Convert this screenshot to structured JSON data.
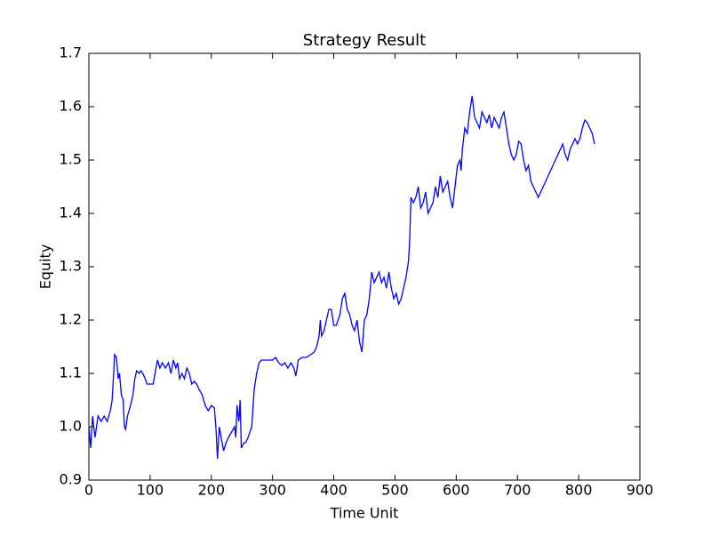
{
  "chart_data": {
    "type": "line",
    "title": "Strategy Result",
    "x_label": "Time Unit",
    "y_label": "Equity",
    "xlim": [
      0,
      900
    ],
    "ylim": [
      0.9,
      1.7
    ],
    "xticks": [
      0,
      100,
      200,
      300,
      400,
      500,
      600,
      700,
      800,
      900
    ],
    "yticks": [
      0.9,
      {
        "value": 1,
        "label": "1.0"
      },
      1.1,
      1.2,
      1.3,
      1.4,
      1.5,
      1.6,
      1.7
    ],
    "grid": false,
    "series": [
      {
        "name": "Equity",
        "color": "#0000ff",
        "x": [
          0,
          3,
          6,
          10,
          15,
          20,
          25,
          30,
          35,
          38,
          40,
          42,
          45,
          48,
          50,
          53,
          56,
          58,
          60,
          63,
          68,
          72,
          75,
          78,
          82,
          85,
          88,
          92,
          95,
          100,
          105,
          108,
          112,
          116,
          120,
          125,
          130,
          134,
          138,
          142,
          145,
          148,
          152,
          156,
          160,
          164,
          168,
          172,
          176,
          180,
          185,
          190,
          195,
          200,
          205,
          208,
          210,
          213,
          216,
          220,
          224,
          228,
          233,
          238,
          240,
          242,
          245,
          247,
          249,
          253,
          256,
          260,
          263,
          266,
          270,
          274,
          278,
          282,
          290,
          300,
          305,
          310,
          315,
          320,
          325,
          330,
          335,
          338,
          342,
          348,
          355,
          362,
          368,
          372,
          376,
          378,
          380,
          384,
          388,
          392,
          396,
          400,
          404,
          410,
          414,
          418,
          422,
          426,
          430,
          434,
          438,
          442,
          446,
          450,
          454,
          458,
          462,
          466,
          470,
          474,
          478,
          482,
          486,
          490,
          494,
          498,
          502,
          506,
          510,
          514,
          518,
          522,
          524,
          526,
          530,
          534,
          538,
          542,
          546,
          550,
          554,
          558,
          562,
          566,
          570,
          574,
          578,
          582,
          586,
          590,
          594,
          598,
          602,
          606,
          608,
          610,
          614,
          618,
          622,
          626,
          630,
          634,
          638,
          642,
          646,
          650,
          654,
          658,
          662,
          666,
          670,
          674,
          678,
          682,
          686,
          690,
          694,
          698,
          702,
          706,
          710,
          714,
          718,
          722,
          726,
          730,
          734,
          738,
          742,
          746,
          750,
          754,
          758,
          762,
          766,
          770,
          774,
          778,
          782,
          786,
          790,
          794,
          798,
          802,
          806,
          810,
          814,
          818,
          822,
          826
        ],
        "values": [
          1.0,
          0.96,
          1.02,
          0.98,
          1.02,
          1.01,
          1.02,
          1.01,
          1.03,
          1.05,
          1.09,
          1.135,
          1.13,
          1.09,
          1.1,
          1.06,
          1.05,
          1.0,
          0.995,
          1.02,
          1.04,
          1.06,
          1.09,
          1.105,
          1.1,
          1.105,
          1.1,
          1.09,
          1.08,
          1.08,
          1.08,
          1.1,
          1.125,
          1.11,
          1.12,
          1.11,
          1.12,
          1.1,
          1.125,
          1.11,
          1.12,
          1.09,
          1.1,
          1.09,
          1.11,
          1.1,
          1.08,
          1.085,
          1.08,
          1.07,
          1.06,
          1.04,
          1.03,
          1.04,
          1.035,
          0.99,
          0.94,
          1.0,
          0.98,
          0.955,
          0.97,
          0.98,
          0.99,
          1.0,
          0.98,
          1.04,
          1.01,
          1.05,
          0.96,
          0.97,
          0.97,
          0.98,
          0.99,
          1.0,
          1.07,
          1.1,
          1.12,
          1.125,
          1.125,
          1.125,
          1.13,
          1.12,
          1.115,
          1.12,
          1.11,
          1.12,
          1.11,
          1.095,
          1.125,
          1.13,
          1.13,
          1.135,
          1.14,
          1.15,
          1.17,
          1.2,
          1.17,
          1.18,
          1.2,
          1.22,
          1.22,
          1.19,
          1.19,
          1.21,
          1.24,
          1.25,
          1.22,
          1.21,
          1.19,
          1.18,
          1.2,
          1.16,
          1.14,
          1.2,
          1.21,
          1.24,
          1.29,
          1.27,
          1.28,
          1.29,
          1.27,
          1.28,
          1.26,
          1.29,
          1.26,
          1.24,
          1.25,
          1.23,
          1.24,
          1.26,
          1.28,
          1.31,
          1.35,
          1.43,
          1.42,
          1.43,
          1.45,
          1.41,
          1.42,
          1.44,
          1.4,
          1.41,
          1.42,
          1.45,
          1.43,
          1.47,
          1.44,
          1.45,
          1.46,
          1.43,
          1.41,
          1.45,
          1.49,
          1.5,
          1.48,
          1.52,
          1.56,
          1.55,
          1.59,
          1.62,
          1.58,
          1.57,
          1.56,
          1.59,
          1.58,
          1.57,
          1.585,
          1.56,
          1.58,
          1.57,
          1.56,
          1.58,
          1.59,
          1.56,
          1.53,
          1.51,
          1.5,
          1.51,
          1.535,
          1.53,
          1.5,
          1.48,
          1.49,
          1.46,
          1.45,
          1.44,
          1.43,
          1.44,
          1.45,
          1.46,
          1.47,
          1.48,
          1.49,
          1.5,
          1.51,
          1.52,
          1.53,
          1.51,
          1.5,
          1.52,
          1.53,
          1.54,
          1.53,
          1.54,
          1.56,
          1.575,
          1.57,
          1.56,
          1.55,
          1.53
        ]
      }
    ]
  }
}
